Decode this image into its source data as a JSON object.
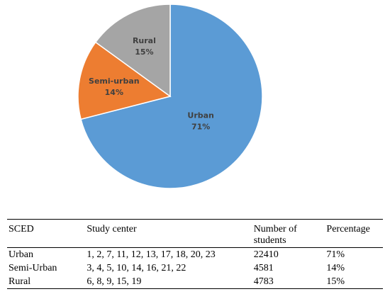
{
  "chart_data": {
    "type": "pie",
    "title": "",
    "slices": [
      {
        "label": "Urban",
        "percent_label": "71%",
        "value": 71,
        "color": "#5b9bd5",
        "label_color": "#404040"
      },
      {
        "label": "Semi-urban",
        "percent_label": "14%",
        "value": 14,
        "color": "#ed7d31",
        "label_color": "#404040"
      },
      {
        "label": "Rural",
        "percent_label": "15%",
        "value": 15,
        "color": "#a5a5a5",
        "label_color": "#404040"
      }
    ]
  },
  "table": {
    "headers": [
      "SCED",
      "Study center",
      "Number of students",
      "Percentage"
    ],
    "rows": [
      [
        "Urban",
        "1, 2, 7, 11, 12, 13, 17, 18, 20, 23",
        "22410",
        "71%"
      ],
      [
        "Semi-Urban",
        "3, 4, 5, 10, 14, 16, 21, 22",
        "4581",
        "14%"
      ],
      [
        "Rural",
        "6, 8, 9, 15, 19",
        "4783",
        "15%"
      ]
    ]
  }
}
